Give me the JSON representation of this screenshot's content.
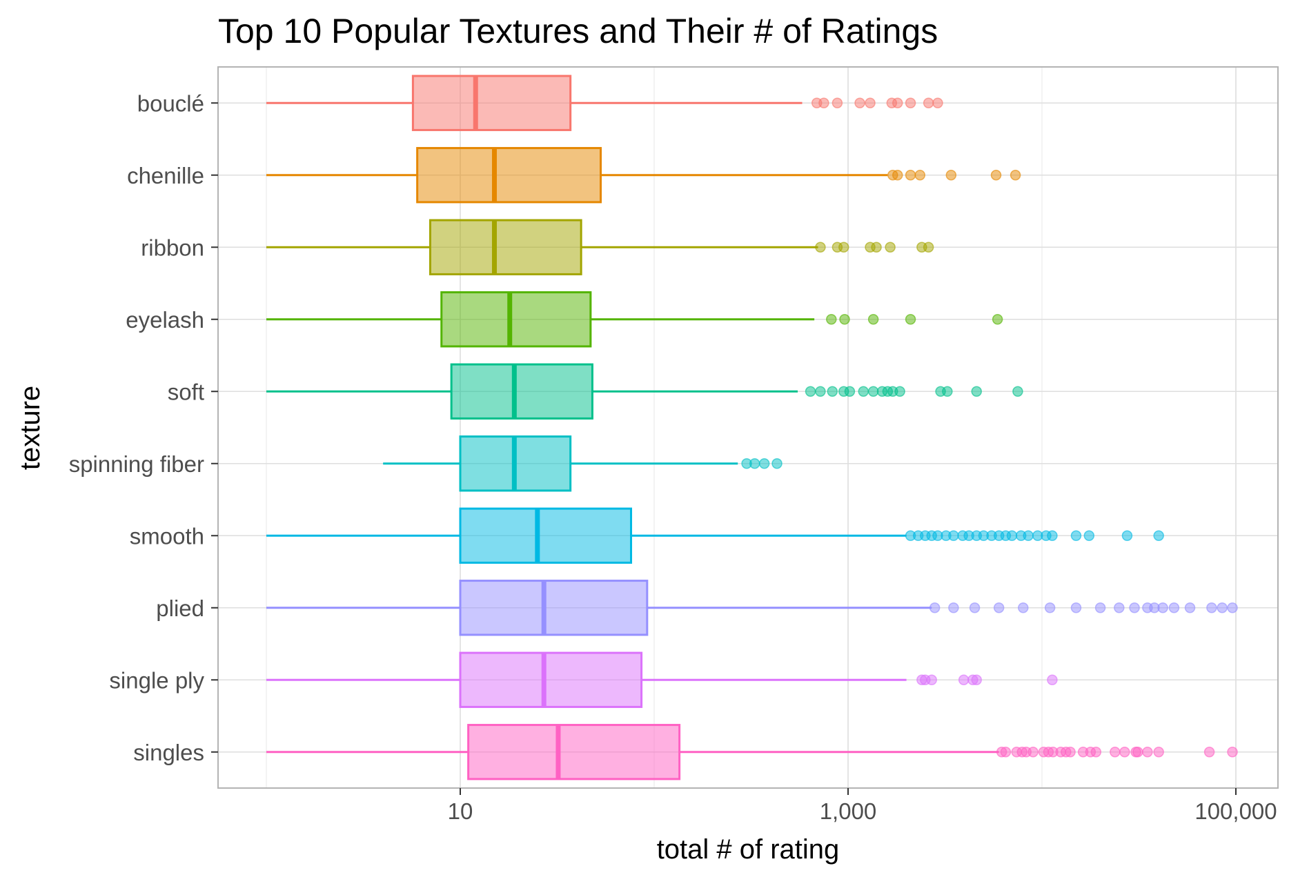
{
  "chart_data": {
    "type": "boxplot",
    "orientation": "horizontal",
    "title": "Top 10 Popular Textures and Their # of Ratings",
    "xlabel": "total # of rating",
    "ylabel": "texture",
    "x_scale": "log10",
    "xlim": [
      0.5,
      200000
    ],
    "x_ticks": [
      {
        "value": 10,
        "label": "10"
      },
      {
        "value": 1000,
        "label": "1,000"
      },
      {
        "value": 100000,
        "label": "100,000"
      }
    ],
    "grid": true,
    "legend": "none",
    "categories": [
      "singles",
      "single ply",
      "plied",
      "smooth",
      "spinning fiber",
      "soft",
      "eyelash",
      "ribbon",
      "chenille",
      "bouclé"
    ],
    "series": [
      {
        "category": "singles",
        "color": "#FF61C3",
        "min": 1,
        "q1": 11,
        "median": 32,
        "q3": 135,
        "max": 6000,
        "outliers": [
          6200,
          6500,
          7400,
          7900,
          8300,
          9000,
          10200,
          10800,
          11400,
          12500,
          13300,
          14000,
          16300,
          17800,
          19000,
          23800,
          26700,
          30500,
          31200,
          35000,
          40000,
          73000,
          96000
        ]
      },
      {
        "category": "single ply",
        "color": "#DB72FB",
        "min": 1,
        "q1": 10,
        "median": 27,
        "q3": 86,
        "max": 2000,
        "outliers": [
          2400,
          2500,
          2700,
          3950,
          4400,
          4600,
          11300
        ]
      },
      {
        "category": "plied",
        "color": "#9590FF",
        "min": 1,
        "q1": 10,
        "median": 27,
        "q3": 92,
        "max": 2700,
        "outliers": [
          2800,
          3500,
          4500,
          6000,
          8000,
          11000,
          15000,
          20000,
          25000,
          30000,
          35000,
          38000,
          42000,
          48000,
          58000,
          75000,
          85000,
          96000
        ]
      },
      {
        "category": "smooth",
        "color": "#00B9E3",
        "min": 1,
        "q1": 10,
        "median": 25,
        "q3": 76,
        "max": 2000,
        "outliers": [
          2100,
          2300,
          2500,
          2700,
          2900,
          3200,
          3500,
          3900,
          4200,
          4600,
          5000,
          5500,
          6000,
          6500,
          7000,
          7800,
          8500,
          9500,
          10500,
          11300,
          15000,
          17500,
          27500,
          40000
        ]
      },
      {
        "category": "spinning fiber",
        "color": "#00BFC4",
        "min": 4,
        "q1": 10,
        "median": 19,
        "q3": 37,
        "max": 270,
        "outliers": [
          300,
          330,
          370,
          430
        ]
      },
      {
        "category": "soft",
        "color": "#00C08B",
        "min": 1,
        "q1": 9,
        "median": 19,
        "q3": 48,
        "max": 550,
        "outliers": [
          640,
          720,
          830,
          950,
          1020,
          1200,
          1350,
          1500,
          1600,
          1700,
          1850,
          3000,
          3250,
          4600,
          7500
        ]
      },
      {
        "category": "eyelash",
        "color": "#53B400",
        "min": 1,
        "q1": 8,
        "median": 18,
        "q3": 47,
        "max": 670,
        "outliers": [
          820,
          960,
          1350,
          2100,
          5900
        ]
      },
      {
        "category": "ribbon",
        "color": "#A3A500",
        "min": 1,
        "q1": 7,
        "median": 15,
        "q3": 42,
        "max": 700,
        "outliers": [
          720,
          880,
          950,
          1300,
          1400,
          1650,
          2400,
          2600
        ]
      },
      {
        "category": "chenille",
        "color": "#E58700",
        "min": 1,
        "q1": 6,
        "median": 15,
        "q3": 53,
        "max": 1600,
        "outliers": [
          1700,
          1800,
          2100,
          2350,
          3400,
          5800,
          7300
        ]
      },
      {
        "category": "bouclé",
        "color": "#F8766D",
        "min": 1,
        "q1": 5.7,
        "median": 12,
        "q3": 37,
        "max": 580,
        "outliers": [
          690,
          750,
          880,
          1150,
          1300,
          1680,
          1800,
          2100,
          2600,
          2900
        ]
      }
    ]
  }
}
